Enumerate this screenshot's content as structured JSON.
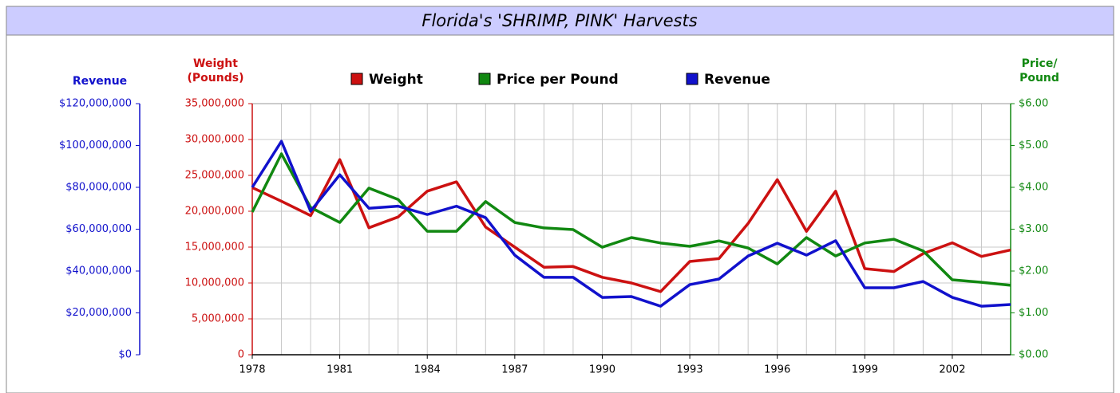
{
  "chart_data": {
    "type": "line",
    "title": "Florida's 'SHRIMP, PINK' Harvests",
    "x": [
      1978,
      1979,
      1980,
      1981,
      1982,
      1983,
      1984,
      1985,
      1986,
      1987,
      1988,
      1989,
      1990,
      1991,
      1992,
      1993,
      1994,
      1995,
      1996,
      1997,
      1998,
      1999,
      2000,
      2001,
      2002,
      2003,
      2004
    ],
    "xlim": [
      1978,
      2004
    ],
    "xticks": [
      1978,
      1981,
      1984,
      1987,
      1990,
      1993,
      1996,
      1999,
      2002
    ],
    "grid": true,
    "ylabel": "Weight (Pounds)",
    "ylim": [
      0,
      35000000
    ],
    "yticks": [
      0,
      {
        "value": 5000000,
        "label": "5,000,000"
      },
      {
        "value": 10000000,
        "label": "10,000,000"
      },
      {
        "value": 15000000,
        "label": "15,000,000"
      },
      {
        "value": 20000000,
        "label": "20,000,000"
      },
      {
        "value": 25000000,
        "label": "25,000,000"
      },
      {
        "value": 30000000,
        "label": "30,000,000"
      },
      {
        "value": 35000000,
        "label": "35,000,000"
      }
    ],
    "y2label": "Price/ Pound",
    "y2lim": [
      0,
      6
    ],
    "y2ticks": [
      {
        "value": 0,
        "label": "$0.00"
      },
      {
        "value": 1,
        "label": "$1.00"
      },
      {
        "value": 2,
        "label": "$2.00"
      },
      {
        "value": 3,
        "label": "$3.00"
      },
      {
        "value": 4,
        "label": "$4.00"
      },
      {
        "value": 5,
        "label": "$5.00"
      },
      {
        "value": 6,
        "label": "$6.00"
      }
    ],
    "y3label": "Revenue",
    "y3lim": [
      0,
      120000000
    ],
    "y3ticks": [
      {
        "value": 0,
        "label": "$0"
      },
      {
        "value": 20000000,
        "label": "$20,000,000"
      },
      {
        "value": 40000000,
        "label": "$40,000,000"
      },
      {
        "value": 60000000,
        "label": "$60,000,000"
      },
      {
        "value": 80000000,
        "label": "$80,000,000"
      },
      {
        "value": 100000000,
        "label": "$100,000,000"
      },
      {
        "value": 120000000,
        "label": "$120,000,000"
      }
    ],
    "series": [
      {
        "name": "Weight",
        "color": "#cc1111",
        "axis": "y",
        "values": [
          23300000,
          21400000,
          19400000,
          27200000,
          17700000,
          19200000,
          22800000,
          24100000,
          17800000,
          15000000,
          12200000,
          12300000,
          10800000,
          10000000,
          8800000,
          13000000,
          13400000,
          18300000,
          24400000,
          17200000,
          22800000,
          12000000,
          11600000,
          14100000,
          15600000,
          13700000,
          14600000
        ]
      },
      {
        "name": "Price per Pound",
        "color": "#118811",
        "axis": "y2",
        "values": [
          3.41,
          4.8,
          3.52,
          3.16,
          3.98,
          3.71,
          2.95,
          2.95,
          3.66,
          3.16,
          3.03,
          2.99,
          2.57,
          2.8,
          2.67,
          2.59,
          2.72,
          2.55,
          2.17,
          2.8,
          2.36,
          2.67,
          2.76,
          2.48,
          1.79,
          1.73,
          1.66
        ]
      },
      {
        "name": "Revenue",
        "color": "#1111cc",
        "axis": "y3",
        "values": [
          80000000,
          102000000,
          68600000,
          86000000,
          70000000,
          71000000,
          67000000,
          71000000,
          65500000,
          47600000,
          37000000,
          37000000,
          27400000,
          27800000,
          23200000,
          33500000,
          36200000,
          47200000,
          53300000,
          47600000,
          54500000,
          32000000,
          32000000,
          35000000,
          27400000,
          23200000,
          24000000
        ]
      }
    ]
  }
}
